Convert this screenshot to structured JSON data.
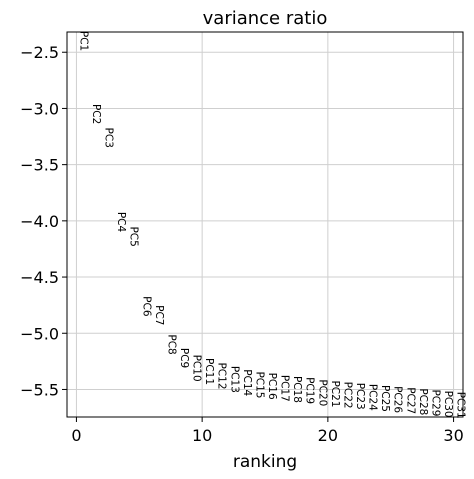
{
  "chart_data": {
    "type": "scatter",
    "title": "variance ratio",
    "xlabel": "ranking",
    "ylabel": "",
    "xlim": [
      -0.75,
      30.75
    ],
    "ylim": [
      -5.745,
      -2.32
    ],
    "xticks": [
      0,
      10,
      20,
      30
    ],
    "xtick_labels": [
      "0",
      "10",
      "20",
      "30"
    ],
    "yticks": [
      -2.5,
      -3.0,
      -3.5,
      -4.0,
      -4.5,
      -5.0,
      -5.5
    ],
    "ytick_labels": [
      "−2.5",
      "−3.0",
      "−3.5",
      "−4.0",
      "−4.5",
      "−5.0",
      "−5.5"
    ],
    "grid": true,
    "marker": "text-label",
    "series": [
      {
        "points": [
          {
            "label": "PC1",
            "x": 0,
            "y": -2.31
          },
          {
            "label": "PC2",
            "x": 1,
            "y": -2.96
          },
          {
            "label": "PC3",
            "x": 2,
            "y": -3.17
          },
          {
            "label": "PC4",
            "x": 3,
            "y": -3.92
          },
          {
            "label": "PC5",
            "x": 4,
            "y": -4.05
          },
          {
            "label": "PC6",
            "x": 5,
            "y": -4.67
          },
          {
            "label": "PC7",
            "x": 6,
            "y": -4.75
          },
          {
            "label": "PC8",
            "x": 7,
            "y": -5.01
          },
          {
            "label": "PC9",
            "x": 8,
            "y": -5.13
          },
          {
            "label": "PC10",
            "x": 9,
            "y": -5.19
          },
          {
            "label": "PC11",
            "x": 10,
            "y": -5.22
          },
          {
            "label": "PC12",
            "x": 11,
            "y": -5.26
          },
          {
            "label": "PC13",
            "x": 12,
            "y": -5.29
          },
          {
            "label": "PC14",
            "x": 13,
            "y": -5.32
          },
          {
            "label": "PC15",
            "x": 14,
            "y": -5.34
          },
          {
            "label": "PC16",
            "x": 15,
            "y": -5.35
          },
          {
            "label": "PC17",
            "x": 16,
            "y": -5.37
          },
          {
            "label": "PC18",
            "x": 17,
            "y": -5.38
          },
          {
            "label": "PC19",
            "x": 18,
            "y": -5.39
          },
          {
            "label": "PC20",
            "x": 19,
            "y": -5.41
          },
          {
            "label": "PC21",
            "x": 20,
            "y": -5.42
          },
          {
            "label": "PC22",
            "x": 21,
            "y": -5.43
          },
          {
            "label": "PC23",
            "x": 22,
            "y": -5.44
          },
          {
            "label": "PC24",
            "x": 23,
            "y": -5.45
          },
          {
            "label": "PC25",
            "x": 24,
            "y": -5.46
          },
          {
            "label": "PC26",
            "x": 25,
            "y": -5.47
          },
          {
            "label": "PC27",
            "x": 26,
            "y": -5.48
          },
          {
            "label": "PC28",
            "x": 27,
            "y": -5.49
          },
          {
            "label": "PC29",
            "x": 28,
            "y": -5.5
          },
          {
            "label": "PC30",
            "x": 29,
            "y": -5.51
          },
          {
            "label": "PC31",
            "x": 30,
            "y": -5.52
          }
        ]
      }
    ]
  }
}
